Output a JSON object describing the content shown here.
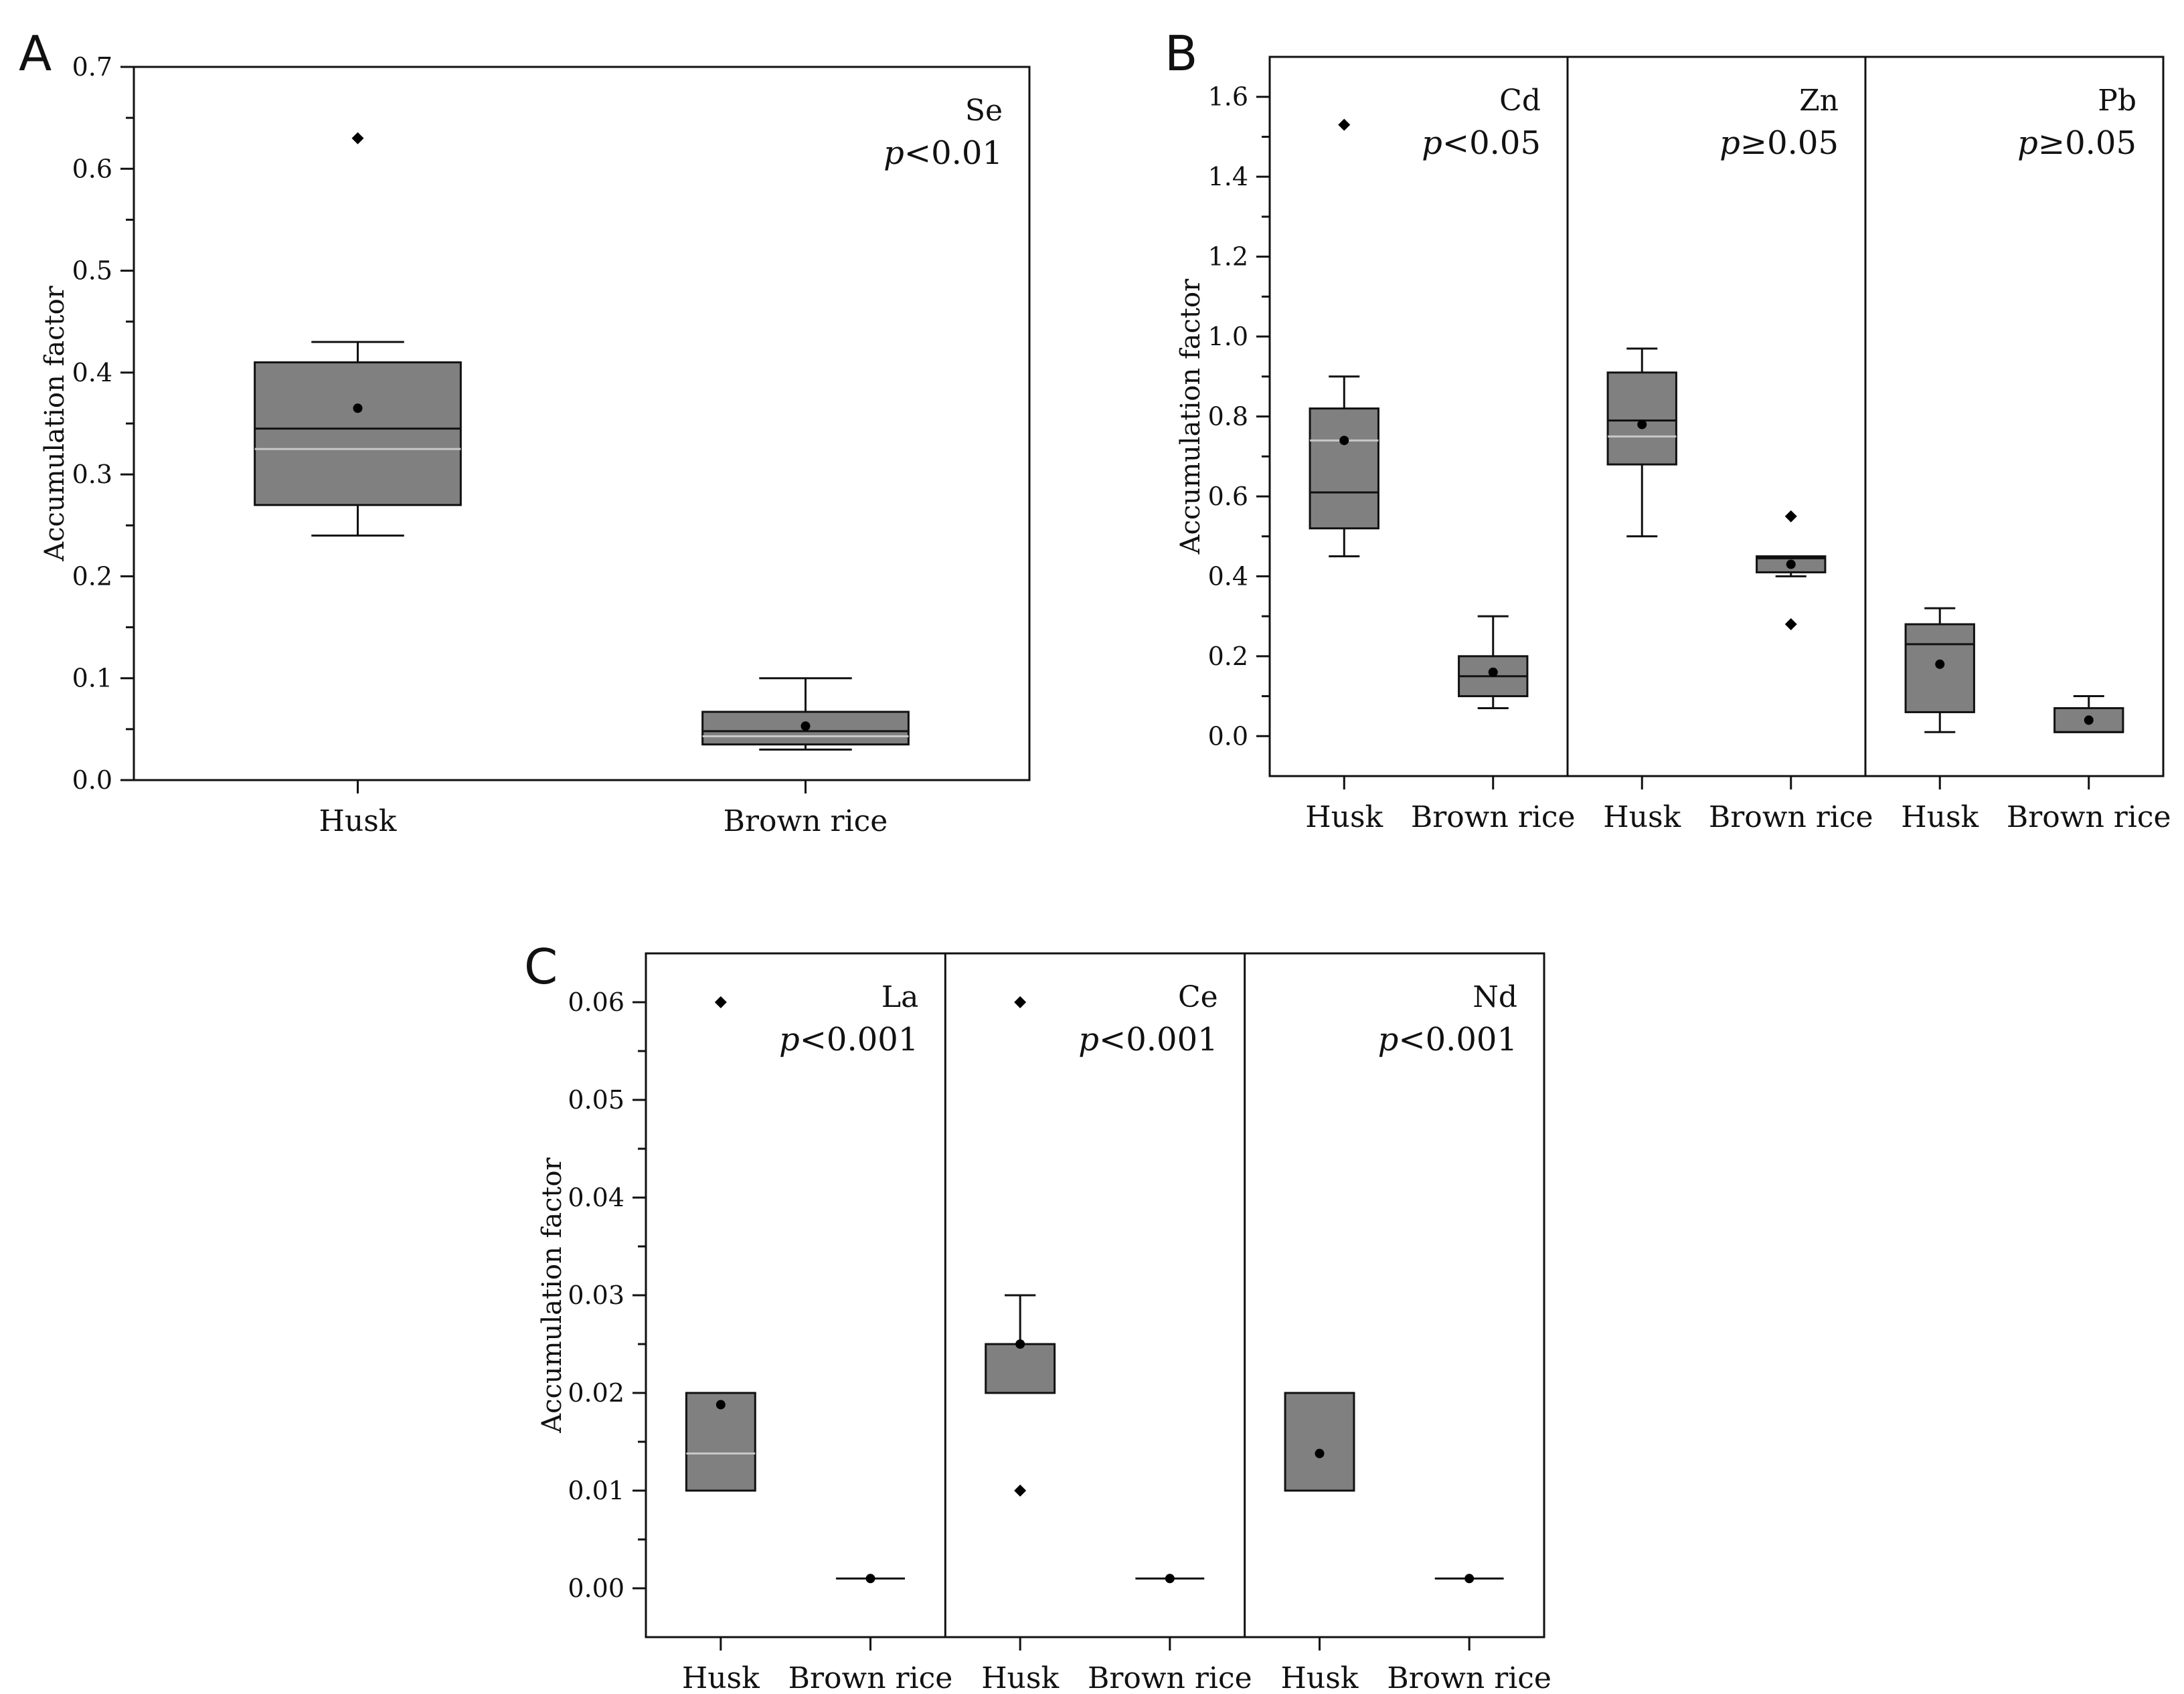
{
  "figure": {
    "panels": [
      {
        "id": "A",
        "letter": "A"
      },
      {
        "id": "B",
        "letter": "B"
      },
      {
        "id": "C",
        "letter": "C"
      }
    ]
  },
  "style": {
    "box_fill": "#808080",
    "box_stroke": "#111111",
    "mean_fill": "#000000",
    "median_mean_line": "#c8c8c8"
  },
  "chart_data": [
    {
      "type": "box",
      "panel": "A",
      "ylabel": "Accumulation factor",
      "ylim": [
        0,
        0.7
      ],
      "yticks": [
        "0.0",
        "0.1",
        "0.2",
        "0.3",
        "0.4",
        "0.5",
        "0.6",
        "0.7"
      ],
      "groups": [
        {
          "element": "Se",
          "p_italic": "p",
          "p_rest": "<0.01",
          "boxes": [
            {
              "category": "Husk",
              "whisker_low": 0.24,
              "q1": 0.27,
              "median": 0.345,
              "q3": 0.41,
              "whisker_high": 0.43,
              "mean": 0.365,
              "center_line": 0.325,
              "outliers": [
                0.63
              ]
            },
            {
              "category": "Brown rice",
              "whisker_low": 0.03,
              "q1": 0.035,
              "median": 0.048,
              "q3": 0.067,
              "whisker_high": 0.1,
              "mean": 0.053,
              "center_line": 0.043,
              "outliers": []
            }
          ]
        }
      ]
    },
    {
      "type": "box",
      "panel": "B",
      "ylabel": "Accumulation factor",
      "ylim": [
        -0.1,
        1.7
      ],
      "yticks": [
        "0.0",
        "0.2",
        "0.4",
        "0.6",
        "0.8",
        "1.0",
        "1.2",
        "1.4",
        "1.6"
      ],
      "groups": [
        {
          "element": "Cd",
          "p_italic": "p",
          "p_rest": "<0.05",
          "boxes": [
            {
              "category": "Husk",
              "whisker_low": 0.45,
              "q1": 0.52,
              "median": 0.61,
              "q3": 0.82,
              "whisker_high": 0.9,
              "mean": 0.74,
              "center_line": 0.74,
              "outliers": [
                1.53
              ]
            },
            {
              "category": "Brown rice",
              "whisker_low": 0.07,
              "q1": 0.1,
              "median": 0.15,
              "q3": 0.2,
              "whisker_high": 0.3,
              "mean": 0.16,
              "center_line": null,
              "outliers": []
            }
          ]
        },
        {
          "element": "Zn",
          "p_italic": "p",
          "p_rest": "≥0.05",
          "boxes": [
            {
              "category": "Husk",
              "whisker_low": 0.5,
              "q1": 0.68,
              "median": 0.79,
              "q3": 0.91,
              "whisker_high": 0.97,
              "mean": 0.78,
              "center_line": 0.75,
              "outliers": []
            },
            {
              "category": "Brown rice",
              "whisker_low": 0.4,
              "q1": 0.41,
              "median": 0.445,
              "q3": 0.45,
              "whisker_high": 0.45,
              "mean": 0.43,
              "center_line": null,
              "outliers": [
                0.55,
                0.28
              ]
            }
          ]
        },
        {
          "element": "Pb",
          "p_italic": "p",
          "p_rest": "≥0.05",
          "boxes": [
            {
              "category": "Husk",
              "whisker_low": 0.01,
              "q1": 0.06,
              "median": 0.23,
              "q3": 0.28,
              "whisker_high": 0.32,
              "mean": 0.18,
              "center_line": null,
              "outliers": []
            },
            {
              "category": "Brown rice",
              "whisker_low": 0.01,
              "q1": 0.01,
              "median": 0.01,
              "q3": 0.07,
              "whisker_high": 0.1,
              "mean": 0.04,
              "center_line": null,
              "outliers": []
            }
          ]
        }
      ]
    },
    {
      "type": "box",
      "panel": "C",
      "ylabel": "Accumulation factor",
      "ylim": [
        -0.005,
        0.065
      ],
      "yticks": [
        "0.00",
        "0.01",
        "0.02",
        "0.03",
        "0.04",
        "0.05",
        "0.06"
      ],
      "groups": [
        {
          "element": "La",
          "p_italic": "p",
          "p_rest": "<0.001",
          "boxes": [
            {
              "category": "Husk",
              "whisker_low": 0.01,
              "q1": 0.01,
              "median": 0.01,
              "q3": 0.02,
              "whisker_high": 0.02,
              "mean": 0.0188,
              "center_line": 0.0138,
              "outliers": [
                0.06
              ]
            },
            {
              "category": "Brown rice",
              "whisker_low": 0.001,
              "q1": 0.001,
              "median": 0.001,
              "q3": 0.001,
              "whisker_high": 0.001,
              "mean": 0.001,
              "center_line": null,
              "outliers": []
            }
          ]
        },
        {
          "element": "Ce",
          "p_italic": "p",
          "p_rest": "<0.001",
          "boxes": [
            {
              "category": "Husk",
              "whisker_low": 0.02,
              "q1": 0.02,
              "median": 0.02,
              "q3": 0.025,
              "whisker_high": 0.03,
              "mean": 0.025,
              "center_line": null,
              "outliers": [
                0.06,
                0.01
              ]
            },
            {
              "category": "Brown rice",
              "whisker_low": 0.001,
              "q1": 0.001,
              "median": 0.001,
              "q3": 0.001,
              "whisker_high": 0.001,
              "mean": 0.001,
              "center_line": null,
              "outliers": []
            }
          ]
        },
        {
          "element": "Nd",
          "p_italic": "p",
          "p_rest": "<0.001",
          "boxes": [
            {
              "category": "Husk",
              "whisker_low": 0.01,
              "q1": 0.01,
              "median": 0.01,
              "q3": 0.02,
              "whisker_high": 0.02,
              "mean": 0.0138,
              "center_line": null,
              "outliers": []
            },
            {
              "category": "Brown rice",
              "whisker_low": 0.001,
              "q1": 0.001,
              "median": 0.001,
              "q3": 0.001,
              "whisker_high": 0.001,
              "mean": 0.001,
              "center_line": null,
              "outliers": []
            }
          ]
        }
      ]
    }
  ]
}
